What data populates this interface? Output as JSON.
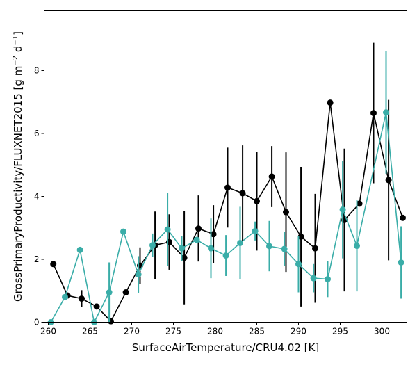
{
  "chart_data": {
    "type": "line",
    "xlabel": "SurfaceAirTemperature/CRU4.02 [K]",
    "ylabel_main": "GrossPrimaryProductivity/FLUXNET2015 [g m",
    "ylabel_exp1": "−2",
    "ylabel_mid": " d",
    "ylabel_exp2": "−1",
    "ylabel_end": "]",
    "xlim": [
      259.5,
      303.0
    ],
    "ylim": [
      0,
      9.9
    ],
    "xticks": [
      260,
      265,
      270,
      275,
      280,
      285,
      290,
      295,
      300
    ],
    "yticks": [
      0,
      2,
      4,
      6,
      8
    ],
    "grid": false,
    "legend": "none",
    "series": [
      {
        "color": "#000000",
        "points": [
          {
            "x": 260.6,
            "y": 1.85
          },
          {
            "x": 262.3,
            "y": 0.85
          },
          {
            "x": 264.0,
            "y": 0.75,
            "err": 0.27
          },
          {
            "x": 265.8,
            "y": 0.5
          },
          {
            "x": 267.5,
            "y": 0.03
          },
          {
            "x": 269.3,
            "y": 0.95
          },
          {
            "x": 271.0,
            "y": 1.8,
            "err": 0.58
          },
          {
            "x": 272.8,
            "y": 2.45,
            "err": 1.07
          },
          {
            "x": 274.5,
            "y": 2.55,
            "err": 0.88
          },
          {
            "x": 276.3,
            "y": 2.05,
            "err": 1.48
          },
          {
            "x": 278.0,
            "y": 2.98,
            "err": 1.05
          },
          {
            "x": 279.8,
            "y": 2.8,
            "err": 0.92
          },
          {
            "x": 281.5,
            "y": 4.28,
            "err": 1.27
          },
          {
            "x": 283.3,
            "y": 4.1,
            "err": 1.52
          },
          {
            "x": 285.0,
            "y": 3.85,
            "err": 1.57
          },
          {
            "x": 286.8,
            "y": 4.63,
            "err": 0.97
          },
          {
            "x": 288.5,
            "y": 3.5,
            "err": 1.9
          },
          {
            "x": 290.3,
            "y": 2.72,
            "err": 2.22
          },
          {
            "x": 292.0,
            "y": 2.35,
            "err": 1.73
          },
          {
            "x": 293.8,
            "y": 6.98
          },
          {
            "x": 295.5,
            "y": 3.25,
            "err": 2.27
          },
          {
            "x": 297.3,
            "y": 3.77
          },
          {
            "x": 299.0,
            "y": 6.65,
            "err": 2.23
          },
          {
            "x": 300.8,
            "y": 4.52,
            "err": 2.55
          },
          {
            "x": 302.5,
            "y": 3.32
          }
        ]
      },
      {
        "color": "#3aada8",
        "points": [
          {
            "x": 260.3,
            "y": 0.0
          },
          {
            "x": 262.0,
            "y": 0.8
          },
          {
            "x": 263.8,
            "y": 2.3
          },
          {
            "x": 265.5,
            "y": 0.0
          },
          {
            "x": 267.3,
            "y": 0.95,
            "err": 0.95
          },
          {
            "x": 269.0,
            "y": 2.88
          },
          {
            "x": 270.8,
            "y": 1.52,
            "err": 0.58
          },
          {
            "x": 272.5,
            "y": 2.45,
            "err": 0.37
          },
          {
            "x": 274.3,
            "y": 2.95,
            "err": 1.15
          },
          {
            "x": 276.0,
            "y": 2.35,
            "err": 0.4
          },
          {
            "x": 277.8,
            "y": 2.62
          },
          {
            "x": 279.5,
            "y": 2.35,
            "err": 0.95
          },
          {
            "x": 281.3,
            "y": 2.12,
            "err": 0.65
          },
          {
            "x": 283.0,
            "y": 2.52,
            "err": 1.15
          },
          {
            "x": 284.8,
            "y": 2.9,
            "err": 0.3
          },
          {
            "x": 286.5,
            "y": 2.42,
            "err": 0.8
          },
          {
            "x": 288.3,
            "y": 2.33,
            "err": 0.55
          },
          {
            "x": 290.0,
            "y": 1.85,
            "err": 0.9
          },
          {
            "x": 291.8,
            "y": 1.4,
            "err": 0.45
          },
          {
            "x": 293.5,
            "y": 1.37,
            "err": 0.57
          },
          {
            "x": 295.3,
            "y": 3.58,
            "err": 1.55
          },
          {
            "x": 297.0,
            "y": 2.43,
            "err": 1.45
          },
          {
            "x": 300.5,
            "y": 6.67,
            "err": 1.95
          },
          {
            "x": 302.3,
            "y": 1.9,
            "err": 1.15
          }
        ]
      }
    ]
  }
}
